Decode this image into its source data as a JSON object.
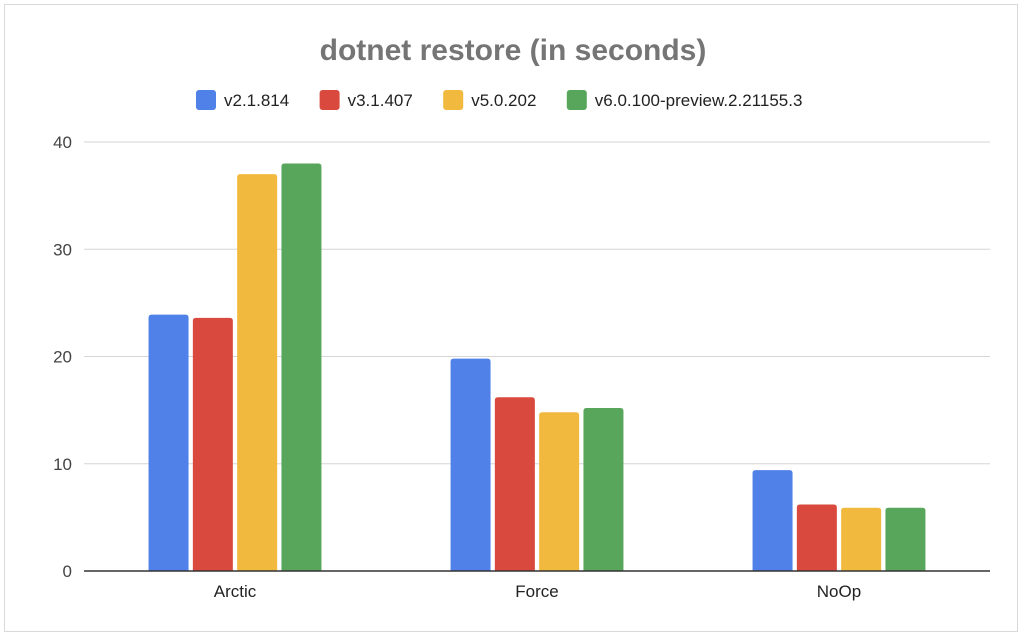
{
  "chart_data": {
    "type": "bar",
    "title": "dotnet restore (in seconds)",
    "xlabel": "",
    "ylabel": "",
    "categories": [
      "Arctic",
      "Force",
      "NoOp"
    ],
    "ylim": [
      0,
      40
    ],
    "yticks": [
      0,
      10,
      20,
      30,
      40
    ],
    "grid": true,
    "legend_position": "top",
    "series": [
      {
        "name": "v2.1.814",
        "color": "#4f81e8",
        "values": [
          23.9,
          19.8,
          9.4
        ]
      },
      {
        "name": "v3.1.407",
        "color": "#d9493d",
        "values": [
          23.6,
          16.2,
          6.2
        ]
      },
      {
        "name": "v5.0.202",
        "color": "#f2b93f",
        "values": [
          37.0,
          14.8,
          5.9
        ]
      },
      {
        "name": "v6.0.100-preview.2.21155.3",
        "color": "#57a65b",
        "values": [
          38.0,
          15.2,
          5.9
        ]
      }
    ]
  }
}
